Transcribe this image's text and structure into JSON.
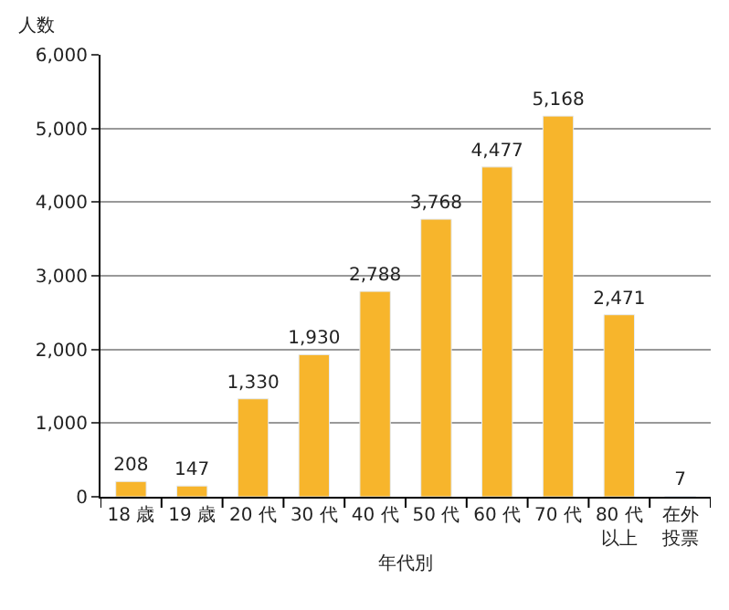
{
  "chart_data": {
    "type": "bar",
    "ylabel": "人数",
    "xlabel": "年代別",
    "categories": [
      "18 歳",
      "19 歳",
      "20 代",
      "30 代",
      "40 代",
      "50 代",
      "60 代",
      "70 代",
      "80 代以上",
      "在外投票"
    ],
    "values": [
      208,
      147,
      1330,
      1930,
      2788,
      3768,
      4477,
      5168,
      2471,
      7
    ],
    "value_labels": [
      "208",
      "147",
      "1,330",
      "1,930",
      "2,788",
      "3,768",
      "4,477",
      "5,168",
      "2,471",
      "7"
    ],
    "color": "#f7b52c",
    "ylim": [
      0,
      6000
    ],
    "yticks": [
      {
        "value": 0,
        "label": "0"
      },
      {
        "value": 1000,
        "label": "1,000"
      },
      {
        "value": 2000,
        "label": "2,000"
      },
      {
        "value": 3000,
        "label": "3,000"
      },
      {
        "value": 4000,
        "label": "4,000"
      },
      {
        "value": 5000,
        "label": "5,000"
      },
      {
        "value": 6000,
        "label": "6,000"
      }
    ],
    "grid": "y",
    "legend": false
  }
}
